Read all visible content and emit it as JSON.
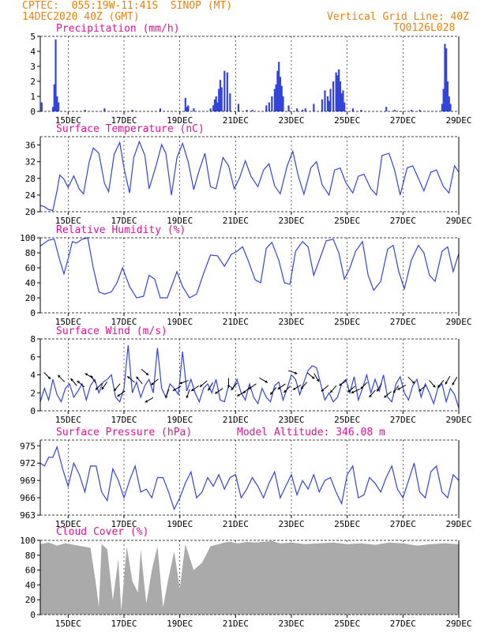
{
  "header": {
    "line1": "CPTEC:  055:19W-11:41S  SINOP (MT)",
    "line2": "14DEC2020 40Z (GMT)",
    "grid_note": "Vertical Grid Line: 40Z",
    "code": "TQ0126L028"
  },
  "x_axis": {
    "ticks": [
      "15DEC",
      "17DEC",
      "19DEC",
      "21DEC",
      "23DEC",
      "25DEC",
      "27DEC",
      "29DEC"
    ],
    "tick_days": [
      1,
      3,
      5,
      7,
      9,
      11,
      13,
      15
    ],
    "start_label": "14DEC2020",
    "end_day": 15
  },
  "colors": {
    "header": "#e8820a",
    "title": "#e0119a",
    "line": "#3344dd",
    "cloud": "#aaaaaa"
  },
  "chart_data": [
    {
      "id": "precip",
      "type": "bar",
      "title": "Precipitation (mm/h)",
      "ylim": [
        0,
        5
      ],
      "yticks": [
        0,
        1,
        2,
        3,
        4,
        5
      ],
      "unit_note": "x = days after 14DEC2020 00Z",
      "x": [
        0.05,
        0.45,
        0.5,
        0.55,
        0.6,
        0.65,
        1.6,
        2.3,
        3.3,
        4.3,
        5.2,
        5.25,
        5.3,
        5.5,
        6.1,
        6.2,
        6.25,
        6.3,
        6.35,
        6.4,
        6.45,
        6.5,
        6.6,
        6.7,
        6.8,
        7.1,
        7.4,
        7.6,
        8.1,
        8.2,
        8.3,
        8.4,
        8.45,
        8.5,
        8.55,
        8.6,
        8.65,
        8.7,
        8.9,
        9.2,
        9.4,
        9.5,
        9.8,
        10.1,
        10.2,
        10.3,
        10.35,
        10.4,
        10.5,
        10.6,
        10.65,
        10.7,
        10.75,
        10.8,
        10.85,
        10.9,
        11.2,
        11.5,
        12.4,
        12.7,
        13.3,
        13.6,
        14.4,
        14.45,
        14.5,
        14.55,
        14.6,
        14.65,
        14.7
      ],
      "values": [
        0.6,
        0.3,
        1.8,
        4.8,
        1.0,
        0.6,
        0.1,
        0.2,
        0.1,
        0.2,
        0.9,
        0.3,
        0.4,
        0.2,
        0.2,
        0.4,
        0.8,
        1.0,
        0.6,
        1.5,
        2.1,
        1.6,
        2.7,
        2.6,
        1.2,
        0.5,
        0.1,
        0.1,
        0.4,
        0.6,
        1.0,
        1.5,
        1.8,
        2.7,
        3.3,
        2.3,
        1.7,
        1.0,
        0.4,
        0.2,
        0.1,
        0.2,
        0.5,
        0.8,
        1.4,
        1.0,
        0.7,
        1.5,
        2.0,
        2.6,
        2.4,
        2.8,
        2.0,
        1.2,
        1.4,
        0.6,
        0.2,
        0.1,
        0.3,
        0.1,
        0.1,
        0.1,
        0.5,
        1.5,
        4.5,
        4.2,
        2.0,
        1.0,
        0.5
      ]
    },
    {
      "id": "temp",
      "type": "line",
      "title": "Surface Temperature (nC)",
      "ylim": [
        20,
        38
      ],
      "yticks": [
        20,
        24,
        28,
        32,
        36
      ],
      "x": [
        0,
        0.15,
        0.3,
        0.45,
        0.6,
        0.7,
        0.85,
        1.0,
        1.2,
        1.4,
        1.55,
        1.75,
        1.9,
        2.1,
        2.3,
        2.45,
        2.65,
        2.85,
        3.0,
        3.2,
        3.35,
        3.55,
        3.75,
        3.9,
        4.15,
        4.35,
        4.5,
        4.7,
        4.9,
        5.1,
        5.3,
        5.5,
        5.7,
        5.9,
        6.1,
        6.3,
        6.55,
        6.75,
        6.95,
        7.15,
        7.35,
        7.55,
        7.8,
        8.0,
        8.2,
        8.4,
        8.6,
        8.85,
        9.05,
        9.25,
        9.45,
        9.7,
        9.9,
        10.1,
        10.35,
        10.55,
        10.75,
        10.95,
        11.2,
        11.4,
        11.6,
        11.85,
        12.05,
        12.25,
        12.5,
        12.7,
        12.9,
        13.15,
        13.35,
        13.55,
        13.75,
        14.0,
        14.2,
        14.45,
        14.65,
        14.85,
        15.0
      ],
      "values": [
        21.5,
        21.2,
        20.5,
        20.3,
        25.0,
        28.8,
        27.8,
        25.8,
        28.6,
        25.4,
        24.3,
        31.8,
        35.3,
        34.0,
        26.8,
        24.8,
        33.8,
        36.6,
        30.5,
        24.5,
        33.0,
        36.8,
        33.5,
        25.5,
        31.0,
        36.1,
        34.0,
        24.0,
        33.0,
        36.4,
        32.0,
        25.3,
        30.0,
        34.0,
        26.0,
        25.5,
        33.0,
        31.0,
        25.5,
        28.2,
        32.2,
        28.5,
        26.0,
        30.0,
        31.5,
        26.2,
        24.3,
        31.0,
        34.5,
        28.5,
        24.2,
        30.5,
        32.0,
        26.5,
        24.0,
        30.0,
        30.5,
        27.0,
        24.5,
        28.5,
        29.0,
        25.5,
        24.0,
        33.5,
        34.0,
        30.0,
        24.0,
        30.5,
        31.0,
        28.0,
        25.0,
        29.5,
        30.0,
        26.0,
        24.5,
        31.0,
        29.5
      ]
    },
    {
      "id": "rh",
      "type": "line",
      "title": "Relative Humidity (%)",
      "ylim": [
        0,
        100
      ],
      "yticks": [
        0,
        20,
        40,
        60,
        80,
        100
      ],
      "x": [
        0,
        0.3,
        0.5,
        0.7,
        0.85,
        1.0,
        1.15,
        1.3,
        1.5,
        1.7,
        1.9,
        2.1,
        2.3,
        2.55,
        2.75,
        2.95,
        3.2,
        3.45,
        3.7,
        3.9,
        4.1,
        4.3,
        4.55,
        4.75,
        4.9,
        5.1,
        5.35,
        5.6,
        5.85,
        6.1,
        6.35,
        6.6,
        6.85,
        7.05,
        7.25,
        7.45,
        7.7,
        7.9,
        8.1,
        8.3,
        8.55,
        8.75,
        8.95,
        9.15,
        9.4,
        9.6,
        9.8,
        10.0,
        10.25,
        10.5,
        10.7,
        10.9,
        11.1,
        11.3,
        11.55,
        11.75,
        11.95,
        12.2,
        12.45,
        12.65,
        12.85,
        13.05,
        13.3,
        13.55,
        13.75,
        13.95,
        14.15,
        14.4,
        14.6,
        14.8,
        15.0
      ],
      "values": [
        89,
        97,
        98,
        70,
        52,
        72,
        95,
        93,
        98,
        100,
        60,
        28,
        25,
        28,
        40,
        60,
        35,
        20,
        22,
        50,
        45,
        20,
        20,
        40,
        55,
        35,
        20,
        25,
        52,
        77,
        76,
        62,
        78,
        82,
        88,
        70,
        44,
        40,
        86,
        94,
        70,
        40,
        38,
        82,
        95,
        88,
        50,
        70,
        96,
        98,
        80,
        45,
        60,
        82,
        95,
        50,
        30,
        42,
        85,
        90,
        55,
        32,
        70,
        90,
        80,
        50,
        42,
        82,
        88,
        55,
        79
      ]
    },
    {
      "id": "wind",
      "type": "line",
      "title": "Surface Wind (m/s)",
      "ylim": [
        0,
        8
      ],
      "yticks": [
        0,
        2,
        4,
        6,
        8
      ],
      "x": [
        0,
        0.15,
        0.3,
        0.45,
        0.6,
        0.75,
        0.9,
        1.05,
        1.2,
        1.35,
        1.5,
        1.65,
        1.8,
        1.95,
        2.1,
        2.25,
        2.4,
        2.55,
        2.7,
        2.85,
        3.0,
        3.15,
        3.3,
        3.45,
        3.6,
        3.75,
        3.9,
        4.05,
        4.2,
        4.35,
        4.5,
        4.65,
        4.8,
        4.95,
        5.1,
        5.25,
        5.4,
        5.55,
        5.7,
        5.85,
        6.0,
        6.15,
        6.3,
        6.45,
        6.6,
        6.75,
        6.9,
        7.05,
        7.2,
        7.35,
        7.5,
        7.65,
        7.8,
        7.95,
        8.1,
        8.25,
        8.4,
        8.55,
        8.7,
        8.85,
        9.0,
        9.15,
        9.3,
        9.45,
        9.6,
        9.75,
        9.9,
        10.05,
        10.2,
        10.35,
        10.5,
        10.65,
        10.8,
        10.95,
        11.1,
        11.25,
        11.4,
        11.55,
        11.7,
        11.85,
        12.0,
        12.15,
        12.3,
        12.45,
        12.6,
        12.75,
        12.9,
        13.05,
        13.2,
        13.35,
        13.5,
        13.65,
        13.8,
        13.95,
        14.1,
        14.25,
        14.4,
        14.55,
        14.7,
        14.85,
        15.0
      ],
      "values": [
        1.0,
        2.5,
        1.2,
        3.5,
        1.8,
        1.0,
        2.5,
        3.0,
        1.5,
        2.2,
        3.0,
        1.2,
        2.8,
        3.5,
        2.0,
        3.2,
        3.5,
        4.0,
        1.5,
        1.0,
        2.5,
        7.3,
        2.0,
        3.2,
        1.5,
        2.8,
        3.5,
        2.0,
        7.0,
        2.5,
        1.5,
        3.0,
        2.5,
        1.8,
        6.6,
        2.2,
        3.5,
        2.0,
        1.0,
        2.5,
        3.0,
        2.0,
        3.5,
        1.2,
        1.0,
        2.8,
        2.5,
        3.5,
        2.0,
        1.2,
        3.0,
        1.5,
        0.8,
        2.5,
        1.5,
        1.0,
        2.8,
        3.2,
        1.2,
        2.5,
        4.0,
        3.5,
        1.8,
        3.2,
        4.5,
        5.0,
        4.8,
        3.0,
        1.2,
        2.0,
        1.0,
        1.5,
        3.0,
        3.5,
        2.0,
        3.8,
        1.2,
        2.5,
        4.0,
        2.0,
        3.5,
        2.2,
        4.0,
        1.5,
        1.0,
        3.0,
        3.8,
        2.0,
        1.2,
        2.8,
        3.5,
        1.5,
        3.0,
        2.0,
        0.8,
        2.5,
        3.0,
        1.0,
        2.5,
        1.8,
        0.3
      ],
      "arrows_x": [
        0.25,
        0.75,
        1.2,
        1.45,
        1.75,
        1.9,
        2.1,
        2.3,
        2.75,
        2.9,
        3.25,
        3.55,
        3.75,
        3.9,
        4.1,
        4.55,
        4.9,
        5.15,
        5.3,
        5.55,
        5.85,
        6.1,
        6.4,
        6.75,
        6.95,
        7.2,
        7.4,
        7.6,
        8.0,
        8.35,
        8.65,
        8.85,
        9.05,
        9.2,
        9.45,
        9.7,
        9.9,
        10.2,
        10.5,
        10.85,
        11.15,
        11.3,
        11.6,
        11.9,
        12.15,
        12.45,
        12.75,
        12.95,
        13.3,
        13.7,
        14.05,
        14.35,
        14.6,
        14.85
      ],
      "arrows_y": [
        3.9,
        3.6,
        3.2,
        3.0,
        3.9,
        3.5,
        2.7,
        2.8,
        2.6,
        1.9,
        3.5,
        3.4,
        4.3,
        1.2,
        3.2,
        1.9,
        2.5,
        3.2,
        1.9,
        2.5,
        3.0,
        2.7,
        2.2,
        3.1,
        2.7,
        1.9,
        2.3,
        2.7,
        3.4,
        2.2,
        2.7,
        2.4,
        4.3,
        2.6,
        2.8,
        3.9,
        3.7,
        2.5,
        2.4,
        3.1,
        2.4,
        2.2,
        2.8,
        1.9,
        2.6,
        1.8,
        2.4,
        2.6,
        3.4,
        2.5,
        3.0,
        3.0,
        3.4,
        3.3
      ],
      "arrows_deg": [
        315,
        135,
        130,
        140,
        150,
        125,
        225,
        235,
        230,
        215,
        140,
        130,
        320,
        210,
        220,
        250,
        210,
        200,
        250,
        215,
        220,
        240,
        215,
        270,
        230,
        210,
        220,
        215,
        330,
        230,
        215,
        225,
        340,
        210,
        230,
        320,
        300,
        220,
        230,
        215,
        220,
        205,
        225,
        230,
        240,
        220,
        235,
        210,
        315,
        220,
        310,
        230,
        240,
        240
      ]
    },
    {
      "id": "pres",
      "type": "line",
      "title": "Surface Pressure (hPa)",
      "ylim": [
        963,
        976
      ],
      "yticks": [
        963,
        966,
        969,
        972,
        975
      ],
      "x": [
        0,
        0.15,
        0.3,
        0.45,
        0.6,
        0.8,
        1.0,
        1.2,
        1.4,
        1.6,
        1.8,
        2.0,
        2.2,
        2.4,
        2.6,
        2.8,
        3.0,
        3.2,
        3.4,
        3.6,
        3.8,
        4.0,
        4.2,
        4.4,
        4.6,
        4.8,
        5.0,
        5.2,
        5.4,
        5.6,
        5.8,
        6.0,
        6.2,
        6.4,
        6.6,
        6.8,
        7.0,
        7.2,
        7.4,
        7.6,
        7.8,
        8.0,
        8.2,
        8.4,
        8.6,
        8.8,
        9.0,
        9.2,
        9.4,
        9.6,
        9.8,
        10.0,
        10.2,
        10.4,
        10.6,
        10.8,
        11.0,
        11.2,
        11.4,
        11.6,
        11.8,
        12.0,
        12.2,
        12.4,
        12.6,
        12.8,
        13.0,
        13.2,
        13.4,
        13.6,
        13.8,
        14.0,
        14.2,
        14.4,
        14.6,
        14.8,
        15.0
      ],
      "values": [
        972,
        971.5,
        973,
        973,
        974.8,
        971,
        968,
        972,
        970,
        967,
        971.5,
        971.5,
        967,
        965.5,
        971,
        969,
        966,
        969,
        971.5,
        967,
        967.5,
        966,
        969.5,
        969.5,
        967,
        964,
        966,
        968.5,
        970.5,
        966,
        967,
        969.5,
        968,
        970,
        967.5,
        969.5,
        970,
        966,
        967.5,
        969.5,
        968,
        966,
        968.5,
        970.5,
        966,
        968,
        970,
        966.5,
        969,
        967.5,
        970,
        967,
        969,
        969.5,
        967,
        965,
        970,
        971.5,
        966,
        966.5,
        969.5,
        968.5,
        967,
        969.5,
        971.5,
        967.5,
        966,
        969,
        972,
        967,
        966,
        970.5,
        971.5,
        967,
        966,
        970,
        969
      ]
    },
    {
      "id": "cloud",
      "type": "area",
      "title": "Cloud Cover (%)",
      "ylim": [
        0,
        100
      ],
      "yticks": [
        0,
        20,
        40,
        60,
        80,
        100
      ],
      "x": [
        0,
        0.3,
        0.6,
        0.9,
        1.2,
        1.5,
        1.8,
        2.0,
        2.1,
        2.2,
        2.4,
        2.6,
        2.8,
        2.9,
        3.1,
        3.3,
        3.5,
        3.6,
        3.8,
        4.0,
        4.2,
        4.4,
        4.6,
        4.8,
        5.0,
        5.2,
        5.5,
        5.8,
        6.1,
        6.4,
        6.6,
        6.8,
        7.1,
        7.4,
        7.7,
        8.0,
        8.3,
        8.6,
        9.0,
        9.5,
        10.0,
        10.5,
        11.0,
        11.5,
        12.0,
        12.5,
        13.0,
        13.5,
        14.0,
        14.5,
        15.0
      ],
      "values": [
        95,
        97,
        93,
        96,
        94,
        92,
        90,
        40,
        10,
        95,
        88,
        20,
        75,
        5,
        92,
        45,
        30,
        88,
        15,
        60,
        92,
        10,
        50,
        85,
        35,
        95,
        60,
        70,
        92,
        95,
        97,
        98,
        96,
        98,
        97,
        98,
        99,
        96,
        97,
        95,
        96,
        97,
        95,
        96,
        94,
        97,
        96,
        93,
        95,
        96,
        95
      ]
    }
  ],
  "extra_labels": {
    "model_altitude": "Model Altitude: 346.08 m"
  }
}
